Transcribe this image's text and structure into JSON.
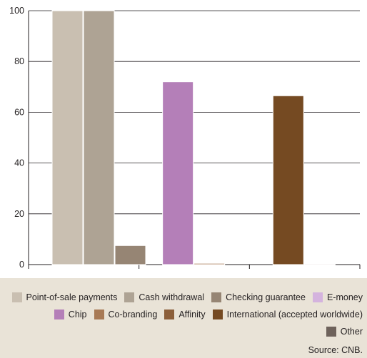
{
  "chart_data": {
    "type": "bar",
    "title": "",
    "xlabel": "",
    "ylabel": "",
    "ylim": [
      0,
      100
    ],
    "yticks": [
      0,
      20,
      40,
      60,
      80,
      100
    ],
    "grid": true,
    "legend_placement": "bottom",
    "groups": 3,
    "series": [
      {
        "name": "Point-of-sale payments",
        "color": "#c9bfb1",
        "values": [
          100,
          null,
          null
        ]
      },
      {
        "name": "Cash withdrawal",
        "color": "#aea394",
        "values": [
          100,
          null,
          null
        ]
      },
      {
        "name": "Checking guarantee",
        "color": "#968574",
        "values": [
          7.5,
          null,
          null
        ]
      },
      {
        "name": "E-money",
        "color": "#d4b3de",
        "values": [
          null,
          null,
          null
        ]
      },
      {
        "name": "Chip",
        "color": "#b47fb8",
        "values": [
          null,
          72,
          null
        ]
      },
      {
        "name": "Co-branding",
        "color": "#a87a55",
        "values": [
          null,
          0.5,
          null
        ]
      },
      {
        "name": "Affinity",
        "color": "#8c5f3a",
        "values": [
          null,
          null,
          null
        ]
      },
      {
        "name": "International (accepted worldwide)",
        "color": "#754a22",
        "values": [
          null,
          null,
          66.5
        ]
      },
      {
        "name": "Other",
        "color": "#6e625b",
        "values": [
          null,
          null,
          0.3
        ]
      }
    ],
    "legend_rows": [
      [
        "Point-of-sale payments",
        "Cash withdrawal",
        "Checking guarantee",
        "E-money"
      ],
      [
        "Chip",
        "Co-branding",
        "Affinity",
        "International (accepted worldwide)"
      ],
      [
        "Other"
      ]
    ],
    "source": "Source: CNB."
  }
}
